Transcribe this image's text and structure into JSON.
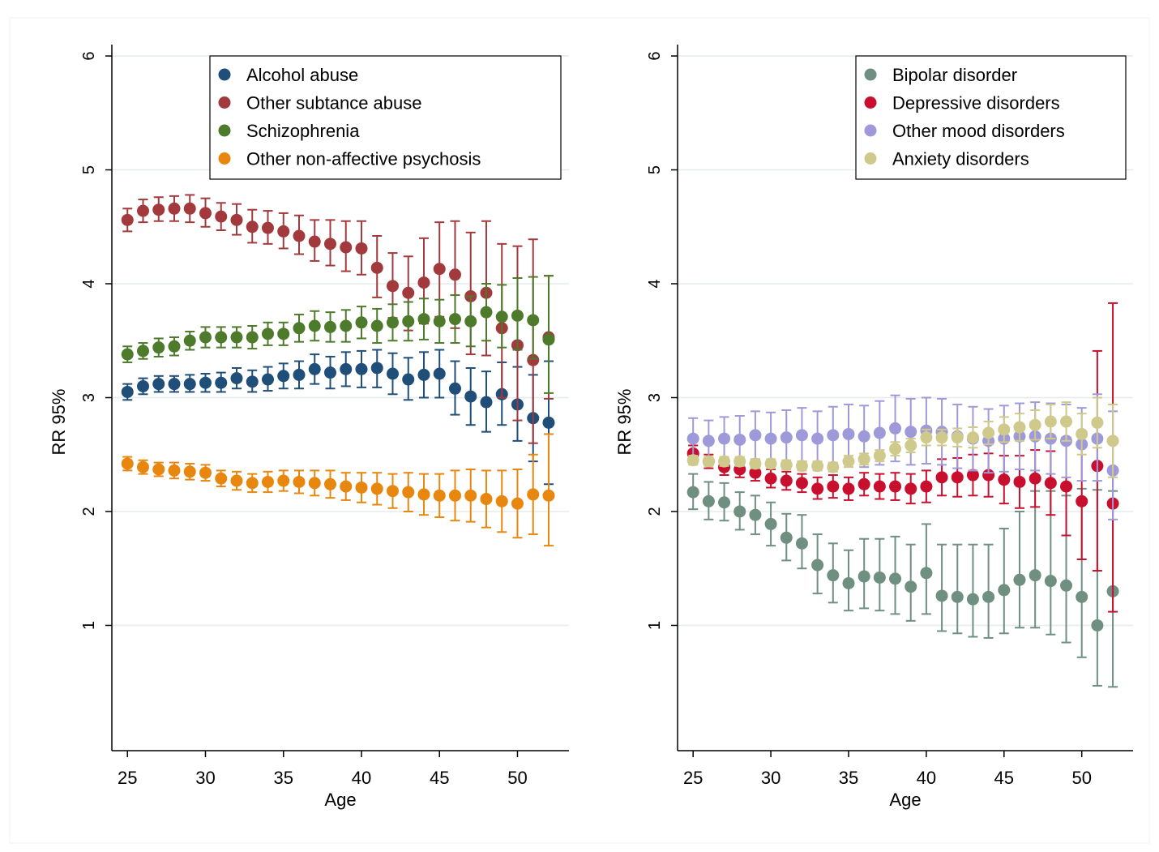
{
  "chart_data": [
    {
      "type": "scatter",
      "xlabel": "Age",
      "ylabel": "RR 95%",
      "xlim": [
        24,
        53.3
      ],
      "ylim": [
        -0.1,
        6.1
      ],
      "xticks": [
        25,
        30,
        35,
        40,
        45,
        50
      ],
      "yticks": [
        1,
        2,
        3,
        4,
        5,
        6
      ],
      "grid": true,
      "legend": "top-right",
      "x": [
        25,
        26,
        27,
        28,
        29,
        30,
        31,
        32,
        33,
        34,
        35,
        36,
        37,
        38,
        39,
        40,
        41,
        42,
        43,
        44,
        45,
        46,
        47,
        48,
        49,
        50,
        51,
        52
      ],
      "series": [
        {
          "name": "Alcohol abuse",
          "color": "#1f4e79",
          "y": [
            3.05,
            3.1,
            3.12,
            3.12,
            3.12,
            3.13,
            3.13,
            3.17,
            3.14,
            3.16,
            3.19,
            3.2,
            3.25,
            3.22,
            3.25,
            3.25,
            3.26,
            3.21,
            3.16,
            3.2,
            3.21,
            3.08,
            3.01,
            2.96,
            3.03,
            2.94,
            2.82,
            2.78
          ],
          "lo": [
            2.98,
            3.03,
            3.05,
            3.05,
            3.05,
            3.05,
            3.05,
            3.08,
            3.05,
            3.06,
            3.08,
            3.08,
            3.12,
            3.08,
            3.1,
            3.09,
            3.09,
            3.03,
            2.98,
            3.0,
            3.0,
            2.85,
            2.76,
            2.7,
            2.76,
            2.62,
            2.44,
            2.24
          ],
          "hi": [
            3.12,
            3.17,
            3.19,
            3.19,
            3.2,
            3.21,
            3.22,
            3.26,
            3.24,
            3.27,
            3.3,
            3.32,
            3.38,
            3.36,
            3.4,
            3.41,
            3.42,
            3.39,
            3.35,
            3.4,
            3.42,
            3.32,
            3.26,
            3.23,
            3.31,
            3.27,
            3.2,
            3.32
          ]
        },
        {
          "name": "Other subtance abuse",
          "color": "#a23a3d",
          "y": [
            4.56,
            4.64,
            4.65,
            4.66,
            4.66,
            4.62,
            4.59,
            4.56,
            4.5,
            4.49,
            4.46,
            4.42,
            4.37,
            4.35,
            4.32,
            4.31,
            4.14,
            3.98,
            3.92,
            4.01,
            4.13,
            4.08,
            3.89,
            3.92,
            3.61,
            3.46,
            3.33,
            3.53
          ],
          "lo": [
            4.46,
            4.54,
            4.55,
            4.55,
            4.54,
            4.5,
            4.47,
            4.43,
            4.36,
            4.35,
            4.31,
            4.26,
            4.2,
            4.16,
            4.11,
            4.08,
            3.88,
            3.7,
            3.59,
            3.65,
            3.71,
            3.61,
            3.38,
            3.37,
            3.0,
            2.8,
            2.6,
            2.99
          ],
          "hi": [
            4.66,
            4.74,
            4.76,
            4.77,
            4.78,
            4.75,
            4.71,
            4.7,
            4.65,
            4.64,
            4.62,
            4.6,
            4.56,
            4.56,
            4.55,
            4.55,
            4.42,
            4.27,
            4.24,
            4.4,
            4.54,
            4.55,
            4.45,
            4.55,
            4.35,
            4.33,
            4.39,
            4.07
          ]
        },
        {
          "name": "Schizophrenia",
          "color": "#4e7a2c",
          "y": [
            3.38,
            3.41,
            3.44,
            3.45,
            3.5,
            3.53,
            3.53,
            3.53,
            3.53,
            3.56,
            3.56,
            3.61,
            3.63,
            3.62,
            3.63,
            3.66,
            3.63,
            3.66,
            3.67,
            3.69,
            3.67,
            3.69,
            3.67,
            3.75,
            3.71,
            3.72,
            3.68,
            3.51
          ],
          "lo": [
            3.31,
            3.34,
            3.36,
            3.37,
            3.42,
            3.44,
            3.44,
            3.44,
            3.43,
            3.46,
            3.46,
            3.49,
            3.5,
            3.49,
            3.49,
            3.52,
            3.48,
            3.5,
            3.5,
            3.51,
            3.48,
            3.48,
            3.45,
            3.5,
            3.44,
            3.42,
            3.34,
            3.04
          ],
          "hi": [
            3.45,
            3.48,
            3.52,
            3.53,
            3.58,
            3.62,
            3.62,
            3.62,
            3.63,
            3.66,
            3.66,
            3.73,
            3.76,
            3.75,
            3.77,
            3.8,
            3.78,
            3.82,
            3.84,
            3.87,
            3.86,
            3.9,
            3.89,
            4.0,
            3.99,
            4.05,
            4.06,
            4.07
          ]
        },
        {
          "name": "Other non-affective psychosis",
          "color": "#e8870f",
          "y": [
            2.42,
            2.39,
            2.37,
            2.36,
            2.35,
            2.34,
            2.29,
            2.27,
            2.25,
            2.26,
            2.27,
            2.26,
            2.25,
            2.24,
            2.22,
            2.21,
            2.2,
            2.18,
            2.17,
            2.15,
            2.14,
            2.14,
            2.14,
            2.11,
            2.09,
            2.07,
            2.15,
            2.14
          ],
          "lo": [
            2.36,
            2.33,
            2.31,
            2.29,
            2.28,
            2.27,
            2.22,
            2.19,
            2.17,
            2.17,
            2.18,
            2.16,
            2.14,
            2.12,
            2.1,
            2.08,
            2.06,
            2.03,
            2.0,
            1.97,
            1.95,
            1.92,
            1.91,
            1.86,
            1.82,
            1.77,
            1.8,
            1.7
          ],
          "hi": [
            2.48,
            2.45,
            2.43,
            2.43,
            2.42,
            2.41,
            2.36,
            2.35,
            2.33,
            2.35,
            2.36,
            2.36,
            2.36,
            2.36,
            2.34,
            2.34,
            2.34,
            2.33,
            2.34,
            2.33,
            2.33,
            2.36,
            2.37,
            2.36,
            2.36,
            2.37,
            2.5,
            2.68
          ]
        }
      ]
    },
    {
      "type": "scatter",
      "xlabel": "Age",
      "ylabel": "RR 95%",
      "xlim": [
        24,
        53.3
      ],
      "ylim": [
        -0.1,
        6.1
      ],
      "xticks": [
        25,
        30,
        35,
        40,
        45,
        50
      ],
      "yticks": [
        1,
        2,
        3,
        4,
        5,
        6
      ],
      "grid": true,
      "legend": "top-right",
      "x": [
        25,
        26,
        27,
        28,
        29,
        30,
        31,
        32,
        33,
        34,
        35,
        36,
        37,
        38,
        39,
        40,
        41,
        42,
        43,
        44,
        45,
        46,
        47,
        48,
        49,
        50,
        51,
        52
      ],
      "series": [
        {
          "name": "Bipolar disorder",
          "color": "#6f8f80",
          "y": [
            2.17,
            2.09,
            2.08,
            2.0,
            1.97,
            1.89,
            1.77,
            1.72,
            1.53,
            1.44,
            1.37,
            1.43,
            1.42,
            1.41,
            1.34,
            1.46,
            1.26,
            1.25,
            1.23,
            1.25,
            1.31,
            1.4,
            1.44,
            1.39,
            1.35,
            1.25,
            1.0,
            1.3
          ],
          "lo": [
            2.02,
            1.93,
            1.92,
            1.84,
            1.8,
            1.7,
            1.57,
            1.5,
            1.28,
            1.2,
            1.13,
            1.15,
            1.13,
            1.1,
            1.04,
            1.1,
            0.95,
            0.93,
            0.9,
            0.89,
            0.93,
            0.98,
            0.98,
            0.92,
            0.85,
            0.72,
            0.47,
            0.46
          ],
          "hi": [
            2.33,
            2.26,
            2.25,
            2.17,
            2.14,
            2.08,
            1.98,
            1.97,
            1.8,
            1.72,
            1.66,
            1.76,
            1.76,
            1.78,
            1.71,
            1.89,
            1.71,
            1.71,
            1.71,
            1.71,
            1.85,
            2.0,
            2.18,
            2.18,
            2.14,
            2.2,
            2.19,
            2.18
          ]
        },
        {
          "name": "Depressive disorders",
          "color": "#c8102e",
          "y": [
            2.51,
            2.44,
            2.39,
            2.37,
            2.34,
            2.29,
            2.27,
            2.25,
            2.2,
            2.22,
            2.2,
            2.24,
            2.22,
            2.22,
            2.2,
            2.22,
            2.3,
            2.3,
            2.32,
            2.32,
            2.28,
            2.26,
            2.29,
            2.25,
            2.22,
            2.09,
            2.4,
            2.07
          ],
          "lo": [
            2.44,
            2.38,
            2.32,
            2.3,
            2.27,
            2.21,
            2.19,
            2.17,
            2.11,
            2.12,
            2.1,
            2.14,
            2.11,
            2.1,
            2.07,
            2.08,
            2.14,
            2.13,
            2.14,
            2.13,
            2.07,
            2.03,
            2.04,
            1.97,
            1.79,
            1.58,
            1.48,
            1.12
          ],
          "hi": [
            2.58,
            2.5,
            2.46,
            2.44,
            2.41,
            2.37,
            2.35,
            2.33,
            2.3,
            2.32,
            2.3,
            2.34,
            2.33,
            2.34,
            2.33,
            2.36,
            2.46,
            2.47,
            2.5,
            2.51,
            2.49,
            2.49,
            2.54,
            2.53,
            2.65,
            2.6,
            3.41,
            3.83
          ]
        },
        {
          "name": "Other mood disorders",
          "color": "#9e9ad9",
          "y": [
            2.64,
            2.62,
            2.64,
            2.63,
            2.67,
            2.64,
            2.65,
            2.67,
            2.64,
            2.67,
            2.68,
            2.66,
            2.69,
            2.73,
            2.7,
            2.71,
            2.7,
            2.66,
            2.64,
            2.62,
            2.64,
            2.66,
            2.66,
            2.64,
            2.62,
            2.59,
            2.64,
            2.36
          ],
          "lo": [
            2.47,
            2.44,
            2.45,
            2.43,
            2.46,
            2.42,
            2.42,
            2.44,
            2.4,
            2.42,
            2.42,
            2.39,
            2.41,
            2.44,
            2.41,
            2.42,
            2.41,
            2.38,
            2.36,
            2.34,
            2.35,
            2.37,
            2.36,
            2.33,
            2.3,
            2.27,
            2.27,
            1.93
          ],
          "hi": [
            2.82,
            2.8,
            2.83,
            2.84,
            2.88,
            2.87,
            2.89,
            2.91,
            2.88,
            2.92,
            2.94,
            2.93,
            2.97,
            3.02,
            2.99,
            3.0,
            2.99,
            2.94,
            2.92,
            2.9,
            2.93,
            2.95,
            2.96,
            2.95,
            2.94,
            2.91,
            3.03,
            2.88
          ]
        },
        {
          "name": "Anxiety disorders",
          "color": "#cfc98b",
          "y": [
            2.45,
            2.44,
            2.44,
            2.44,
            2.42,
            2.42,
            2.41,
            2.4,
            2.4,
            2.39,
            2.44,
            2.46,
            2.49,
            2.55,
            2.58,
            2.65,
            2.65,
            2.65,
            2.65,
            2.69,
            2.72,
            2.74,
            2.76,
            2.79,
            2.79,
            2.68,
            2.78,
            2.62
          ],
          "lo": [
            2.41,
            2.4,
            2.4,
            2.4,
            2.38,
            2.38,
            2.37,
            2.36,
            2.36,
            2.35,
            2.39,
            2.41,
            2.44,
            2.49,
            2.52,
            2.58,
            2.58,
            2.57,
            2.56,
            2.59,
            2.61,
            2.62,
            2.63,
            2.64,
            2.62,
            2.5,
            2.56,
            2.3
          ],
          "hi": [
            2.49,
            2.48,
            2.48,
            2.48,
            2.46,
            2.46,
            2.45,
            2.44,
            2.44,
            2.43,
            2.49,
            2.51,
            2.54,
            2.61,
            2.64,
            2.72,
            2.72,
            2.73,
            2.74,
            2.79,
            2.83,
            2.86,
            2.89,
            2.94,
            2.96,
            2.86,
            3.0,
            2.94
          ]
        }
      ]
    }
  ]
}
